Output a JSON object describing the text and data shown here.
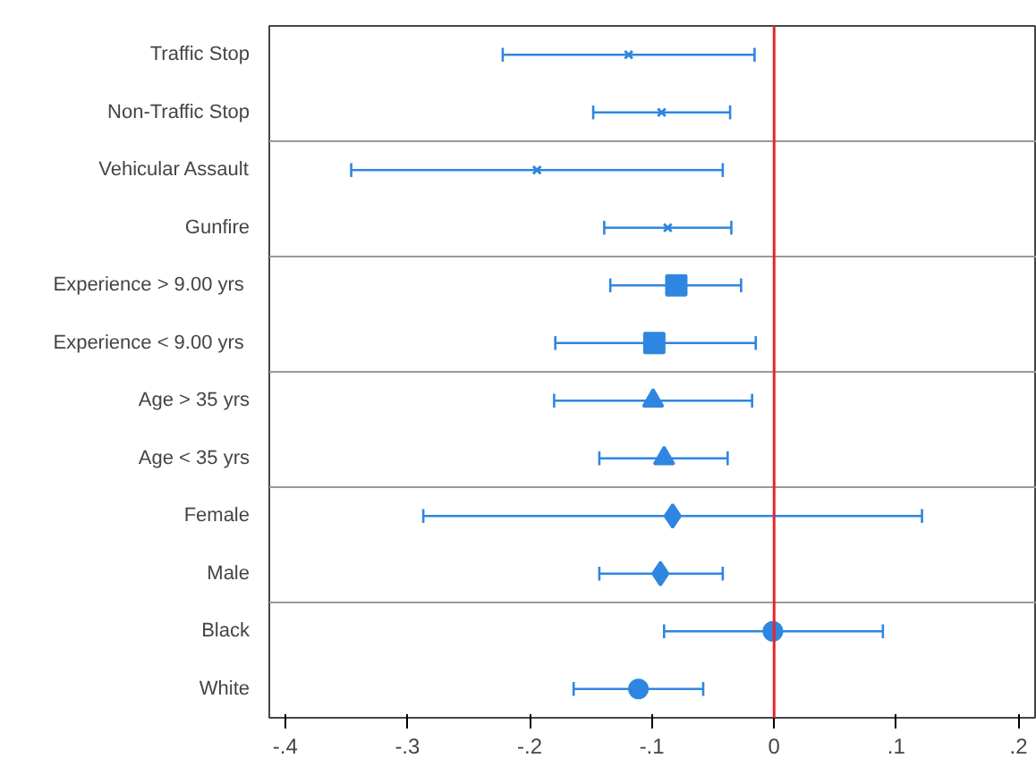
{
  "chart_data": {
    "type": "scatter",
    "orientation": "horizontal",
    "grid": false,
    "categories": [
      "Traffic Stop",
      "Non-Traffic Stop",
      "Vehicular Assault",
      "Gunfire",
      "Experience >  9.00 yrs",
      "Experience <  9.00 yrs",
      "Age > 35 yrs",
      "Age < 35 yrs",
      "Female",
      "Male",
      "Black",
      "White"
    ],
    "xlim": [
      -0.413,
      0.215
    ],
    "xticks": [
      {
        "value": -0.4,
        "label": "-.4"
      },
      {
        "value": -0.3,
        "label": "-.3"
      },
      {
        "value": -0.2,
        "label": "-.2"
      },
      {
        "value": -0.1,
        "label": "-.1"
      },
      0,
      {
        "value": 0.1,
        "label": ".1"
      },
      {
        "value": 0.2,
        "label": ".2"
      }
    ],
    "ref_lines": [
      {
        "axis": "x",
        "value": 0,
        "color": "#e8262a"
      }
    ],
    "series": [
      {
        "color": "#2f86e0",
        "marker": "cross",
        "values": [
          -0.119,
          -0.092,
          null,
          null,
          null,
          null,
          null,
          null,
          null,
          null,
          null,
          null
        ],
        "errors": [
          [
            -0.222,
            -0.016
          ],
          [
            -0.148,
            -0.036
          ],
          null,
          null,
          null,
          null,
          null,
          null,
          null,
          null,
          null,
          null
        ]
      },
      {
        "color": "#2f86e0",
        "marker": "cross",
        "values": [
          null,
          null,
          -0.194,
          -0.087,
          null,
          null,
          null,
          null,
          null,
          null,
          null,
          null
        ],
        "errors": [
          null,
          null,
          [
            -0.346,
            -0.042
          ],
          [
            -0.139,
            -0.035
          ],
          null,
          null,
          null,
          null,
          null,
          null,
          null,
          null
        ]
      },
      {
        "color": "#2f86e0",
        "marker": "square",
        "values": [
          null,
          null,
          null,
          null,
          -0.08,
          -0.098,
          null,
          null,
          null,
          null,
          null,
          null
        ],
        "errors": [
          null,
          null,
          null,
          null,
          [
            -0.134,
            -0.027
          ],
          [
            -0.179,
            -0.015
          ],
          null,
          null,
          null,
          null,
          null,
          null
        ]
      },
      {
        "color": "#2f86e0",
        "marker": "triangle",
        "values": [
          null,
          null,
          null,
          null,
          null,
          null,
          -0.099,
          -0.09,
          null,
          null,
          null,
          null
        ],
        "errors": [
          null,
          null,
          null,
          null,
          null,
          null,
          [
            -0.18,
            -0.018
          ],
          [
            -0.143,
            -0.038
          ],
          null,
          null,
          null,
          null
        ]
      },
      {
        "color": "#2f86e0",
        "marker": "diamond",
        "values": [
          null,
          null,
          null,
          null,
          null,
          null,
          null,
          null,
          -0.083,
          -0.093,
          null,
          null
        ],
        "errors": [
          null,
          null,
          null,
          null,
          null,
          null,
          null,
          null,
          [
            -0.287,
            0.121
          ],
          [
            -0.143,
            -0.042
          ],
          null,
          null
        ]
      },
      {
        "color": "#2f86e0",
        "marker": "circle",
        "values": [
          null,
          null,
          null,
          null,
          null,
          null,
          null,
          null,
          null,
          null,
          -0.001,
          -0.111
        ],
        "errors": [
          null,
          null,
          null,
          null,
          null,
          null,
          null,
          null,
          null,
          null,
          [
            -0.09,
            0.089
          ],
          [
            -0.164,
            -0.058
          ]
        ]
      }
    ]
  }
}
